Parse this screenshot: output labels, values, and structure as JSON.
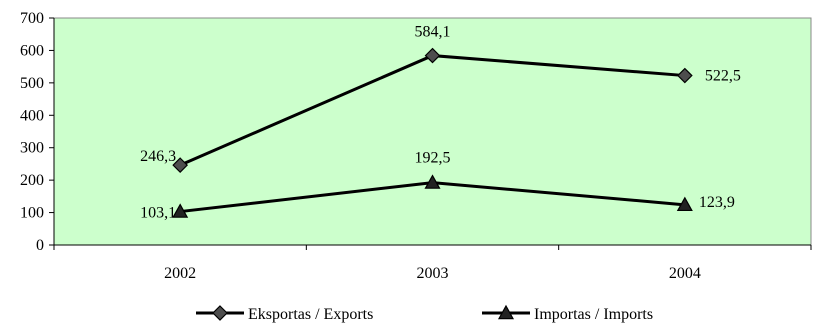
{
  "chart_data": {
    "type": "line",
    "title": "",
    "xlabel": "",
    "ylabel": "",
    "categories": [
      "2002",
      "2003",
      "2004"
    ],
    "ylim": [
      0,
      700
    ],
    "yticks": [
      0,
      100,
      200,
      300,
      400,
      500,
      600,
      700
    ],
    "ytick_labels": [
      "0",
      "100",
      "200",
      "300",
      "400",
      "500",
      "600",
      "700"
    ],
    "grid": false,
    "legend_position": "bottom",
    "plot_background": "#ccffcc",
    "series": [
      {
        "name": "Eksportas / Exports",
        "values": [
          246.3,
          584.1,
          522.5
        ],
        "labels": [
          "246,3",
          "584,1",
          "522,5"
        ],
        "marker": "diamond",
        "color": "#000000",
        "marker_fill": "#4d4d4d"
      },
      {
        "name": "Importas / Imports",
        "values": [
          103.1,
          192.5,
          123.9
        ],
        "labels": [
          "103,1",
          "192,5",
          "123,9"
        ],
        "marker": "triangle",
        "color": "#000000",
        "marker_fill": "#222222"
      }
    ]
  }
}
